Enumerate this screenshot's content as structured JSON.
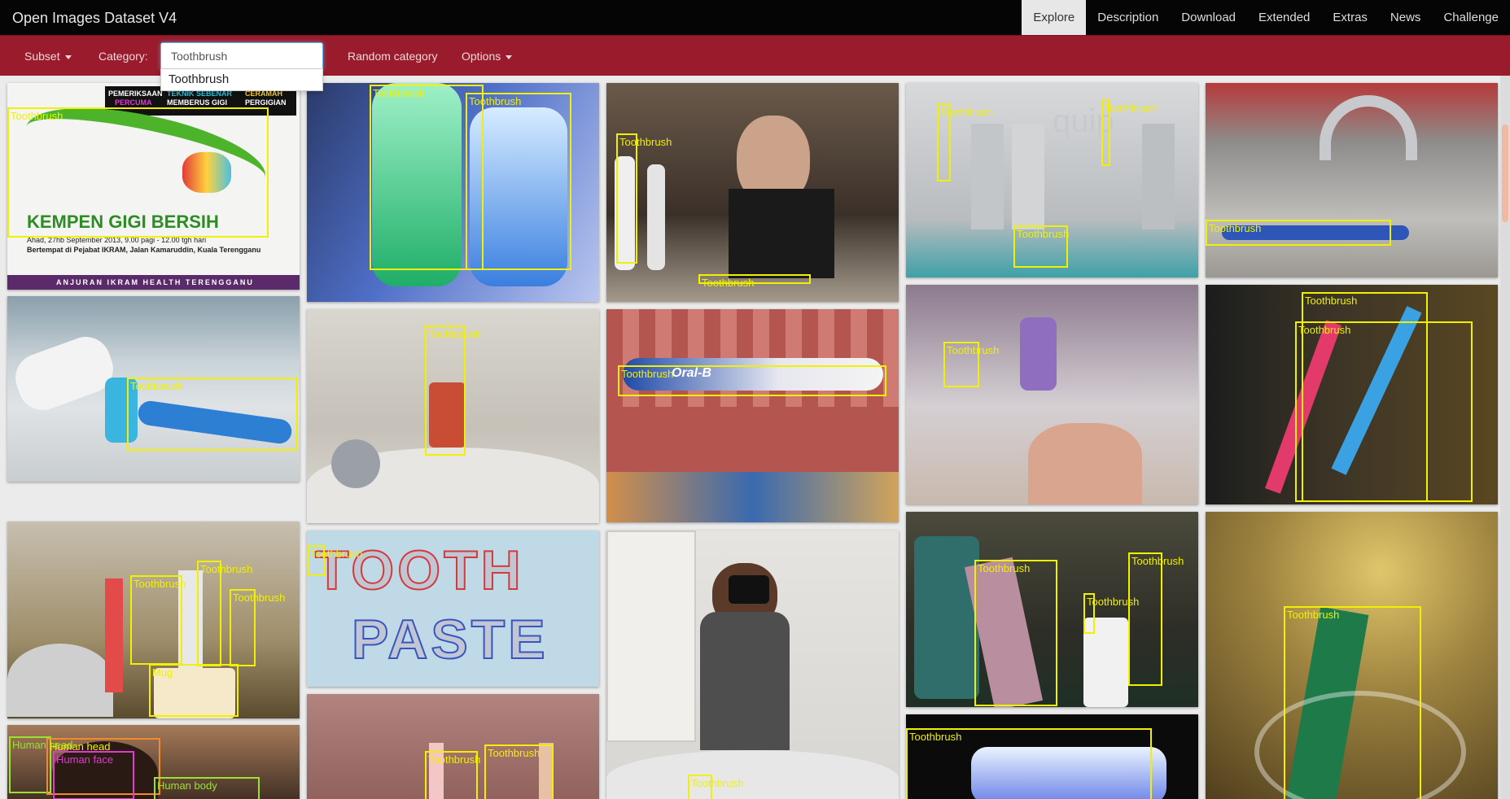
{
  "app": {
    "title": "Open Images Dataset V4"
  },
  "nav": [
    {
      "label": "Explore",
      "active": true
    },
    {
      "label": "Description"
    },
    {
      "label": "Download"
    },
    {
      "label": "Extended"
    },
    {
      "label": "Extras"
    },
    {
      "label": "News"
    },
    {
      "label": "Challenge"
    }
  ],
  "toolbar": {
    "subset_label": "Subset",
    "category_label": "Category:",
    "category_value": "Toothbrush",
    "suggestion": "Toothbrush",
    "random_label": "Random category",
    "options_label": "Options"
  },
  "labels": {
    "toothbrush": "Toothbrush",
    "mug": "Mug",
    "human_face": "Human face",
    "human_head": "Human head",
    "human_body": "Human body",
    "human_hand": "Human hand"
  },
  "poster": {
    "line1": "PEMERIKSAAN",
    "line1b": "PERCUMA",
    "line2": "TEKNIK SEBENAR",
    "line2b": "MEMBERUS GIGI",
    "line3": "CERAMAH",
    "line3b": "PERGIGIAN",
    "title": "KEMPEN GIGI BERSIH",
    "detail1": "Ahad, 27hb September 2013, 9.00 pagi - 12.00 tgh hari",
    "detail2": "Bertempat di Pejabat IKRAM, Jalan Kamaruddin, Kuala Terengganu",
    "footer": "ANJURAN IKRAM HEALTH TERENGGANU"
  },
  "tooth_paste": {
    "word1": "TOOTH",
    "word2": "PASTE"
  },
  "brands": {
    "oralb": "Oral-B",
    "quip": "quip"
  },
  "colors": {
    "topbar": "#050505",
    "subbar": "#9a1b2b",
    "box": "#f0f000"
  }
}
